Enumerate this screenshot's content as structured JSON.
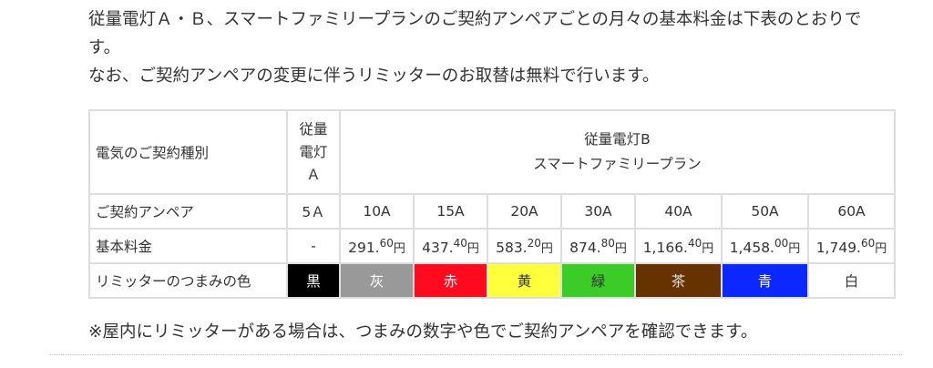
{
  "intro": {
    "line1": "従量電灯Ａ・Ｂ、スマートファミリープランのご契約アンペアごとの月々の基本料金は下表のとおりです。",
    "line2": "なお、ご契約アンペアの変更に伴うリミッターのお取替は無料で行います。"
  },
  "table": {
    "header_label": "電気のご契約種別",
    "plan_a": [
      "従量",
      "電灯",
      "Ａ"
    ],
    "plan_b": [
      "従量電灯B",
      "スマートファミリープラン"
    ],
    "ampere_label": "ご契約アンペア",
    "fee_label": "基本料金",
    "color_label": "リミッターのつまみの色",
    "yen": "円",
    "columns": [
      {
        "ampere": "5Ａ",
        "fee_int": "-",
        "fee_dec": "",
        "color": "黒",
        "bg": "#000000",
        "fg": "#ffffff"
      },
      {
        "ampere": "10A",
        "fee_int": "291.",
        "fee_dec": "60",
        "color": "灰",
        "bg": "#999999",
        "fg": "#ffffff"
      },
      {
        "ampere": "15A",
        "fee_int": "437.",
        "fee_dec": "40",
        "color": "赤",
        "bg": "#ff0a1e",
        "fg": "#ffffff"
      },
      {
        "ampere": "20A",
        "fee_int": "583.",
        "fee_dec": "20",
        "color": "黄",
        "bg": "#ffff3c",
        "fg": "#333333"
      },
      {
        "ampere": "30A",
        "fee_int": "874.",
        "fee_dec": "80",
        "color": "緑",
        "bg": "#3ccc28",
        "fg": "#333333"
      },
      {
        "ampere": "40A",
        "fee_int": "1,166.",
        "fee_dec": "40",
        "color": "茶",
        "bg": "#663300",
        "fg": "#dddddd"
      },
      {
        "ampere": "50A",
        "fee_int": "1,458.",
        "fee_dec": "00",
        "color": "青",
        "bg": "#0a28ff",
        "fg": "#ffffff"
      },
      {
        "ampere": "60A",
        "fee_int": "1,749.",
        "fee_dec": "60",
        "color": "白",
        "bg": "#ffffff",
        "fg": "#333333"
      }
    ]
  },
  "note": "※屋内にリミッターがある場合は、つまみの数字や色でご契約アンペアを確認できます。"
}
